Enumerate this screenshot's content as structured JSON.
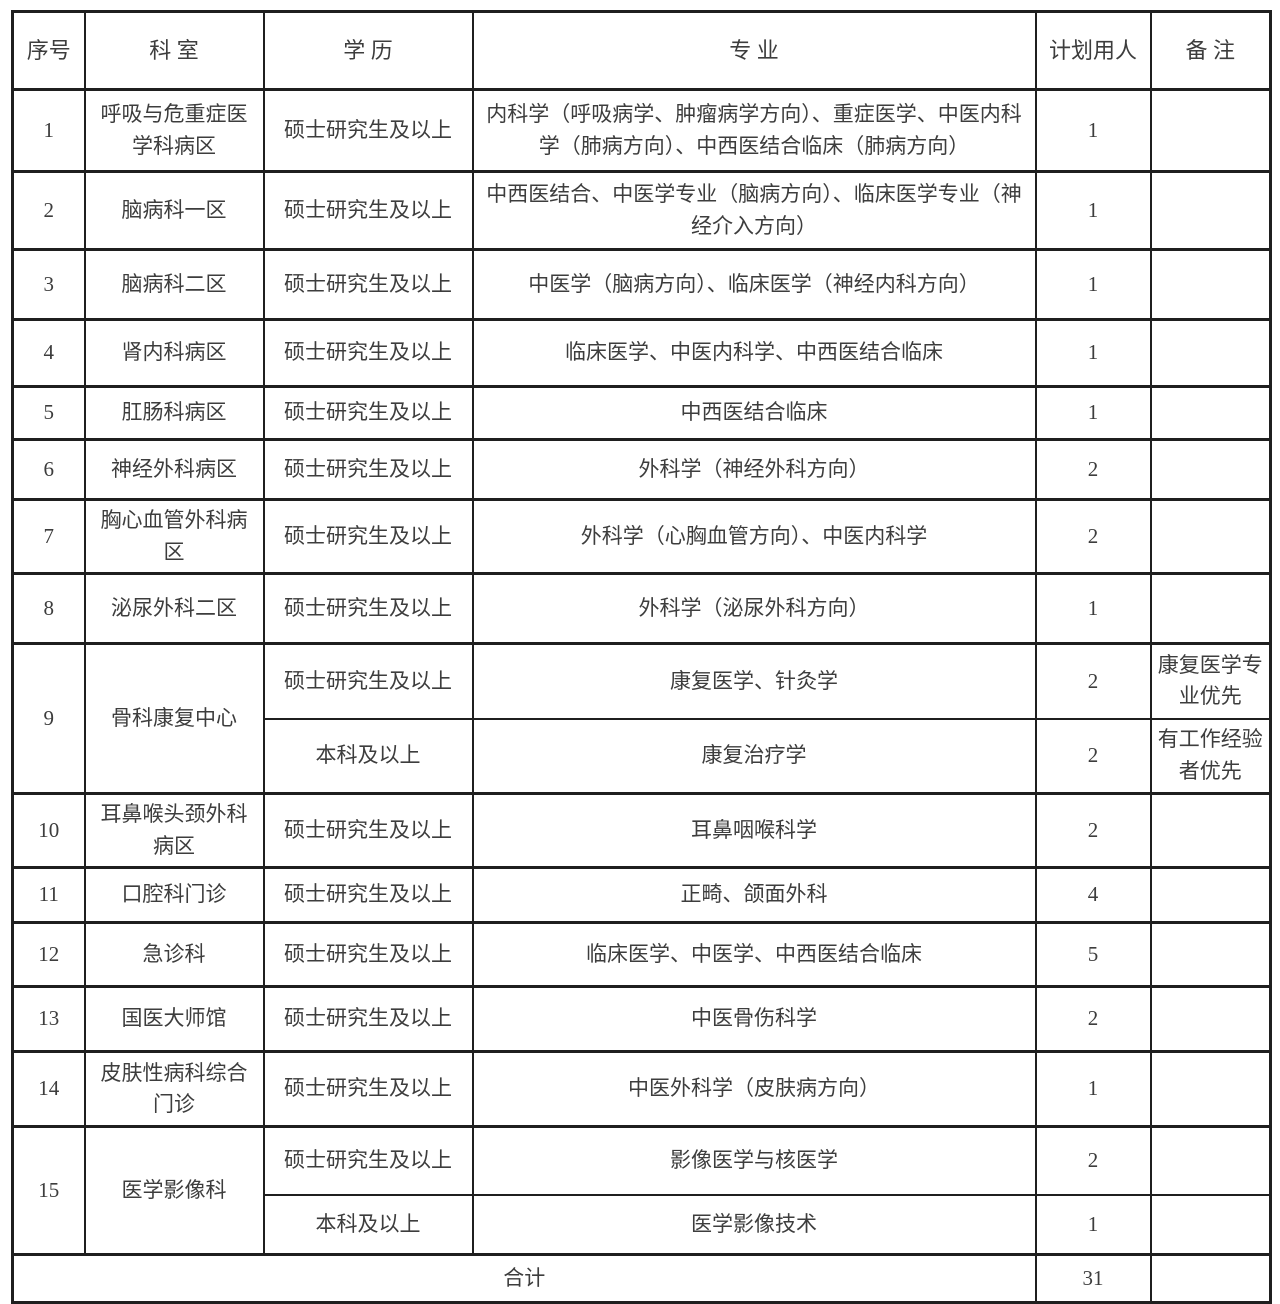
{
  "table": {
    "headers": [
      "序号",
      "科 室",
      "学 历",
      "专 业",
      "计划用人",
      "备 注"
    ],
    "rows": [
      {
        "no": "1",
        "dept": "呼吸与危重症医学科病区",
        "subrows": [
          {
            "edu": "硕士研究生及以上",
            "major": "内科学（呼吸病学、肿瘤病学方向）、重症医学、中医内科学（肺病方向）、中西医结合临床（肺病方向）",
            "count": "1",
            "note": ""
          }
        ]
      },
      {
        "no": "2",
        "dept": "脑病科一区",
        "subrows": [
          {
            "edu": "硕士研究生及以上",
            "major": "中西医结合、中医学专业（脑病方向）、临床医学专业（神经介入方向）",
            "count": "1",
            "note": ""
          }
        ]
      },
      {
        "no": "3",
        "dept": "脑病科二区",
        "subrows": [
          {
            "edu": "硕士研究生及以上",
            "major": "中医学（脑病方向）、临床医学（神经内科方向）",
            "count": "1",
            "note": ""
          }
        ]
      },
      {
        "no": "4",
        "dept": "肾内科病区",
        "subrows": [
          {
            "edu": "硕士研究生及以上",
            "major": "临床医学、中医内科学、中西医结合临床",
            "count": "1",
            "note": ""
          }
        ]
      },
      {
        "no": "5",
        "dept": "肛肠科病区",
        "subrows": [
          {
            "edu": "硕士研究生及以上",
            "major": "中西医结合临床",
            "count": "1",
            "note": ""
          }
        ]
      },
      {
        "no": "6",
        "dept": "神经外科病区",
        "subrows": [
          {
            "edu": "硕士研究生及以上",
            "major": "外科学（神经外科方向）",
            "count": "2",
            "note": ""
          }
        ]
      },
      {
        "no": "7",
        "dept": "胸心血管外科病区",
        "subrows": [
          {
            "edu": "硕士研究生及以上",
            "major": "外科学（心胸血管方向）、中医内科学",
            "count": "2",
            "note": ""
          }
        ]
      },
      {
        "no": "8",
        "dept": "泌尿外科二区",
        "subrows": [
          {
            "edu": "硕士研究生及以上",
            "major": "外科学（泌尿外科方向）",
            "count": "1",
            "note": ""
          }
        ]
      },
      {
        "no": "9",
        "dept": "骨科康复中心",
        "subrows": [
          {
            "edu": "硕士研究生及以上",
            "major": "康复医学、针灸学",
            "count": "2",
            "note": "康复医学专业优先"
          },
          {
            "edu": "本科及以上",
            "major": "康复治疗学",
            "count": "2",
            "note": "有工作经验者优先"
          }
        ]
      },
      {
        "no": "10",
        "dept": "耳鼻喉头颈外科病区",
        "subrows": [
          {
            "edu": "硕士研究生及以上",
            "major": "耳鼻咽喉科学",
            "count": "2",
            "note": ""
          }
        ]
      },
      {
        "no": "11",
        "dept": "口腔科门诊",
        "subrows": [
          {
            "edu": "硕士研究生及以上",
            "major": "正畸、颌面外科",
            "count": "4",
            "note": ""
          }
        ]
      },
      {
        "no": "12",
        "dept": "急诊科",
        "subrows": [
          {
            "edu": "硕士研究生及以上",
            "major": "临床医学、中医学、中西医结合临床",
            "count": "5",
            "note": ""
          }
        ]
      },
      {
        "no": "13",
        "dept": "国医大师馆",
        "subrows": [
          {
            "edu": "硕士研究生及以上",
            "major": "中医骨伤科学",
            "count": "2",
            "note": ""
          }
        ]
      },
      {
        "no": "14",
        "dept": "皮肤性病科综合门诊",
        "subrows": [
          {
            "edu": "硕士研究生及以上",
            "major": "中医外科学（皮肤病方向）",
            "count": "1",
            "note": ""
          }
        ]
      },
      {
        "no": "15",
        "dept": "医学影像科",
        "subrows": [
          {
            "edu": "硕士研究生及以上",
            "major": "影像医学与核医学",
            "count": "2",
            "note": ""
          },
          {
            "edu": "本科及以上",
            "major": "医学影像技术",
            "count": "1",
            "note": ""
          }
        ]
      }
    ],
    "total": {
      "label": "合计",
      "count": "31",
      "note": ""
    }
  }
}
